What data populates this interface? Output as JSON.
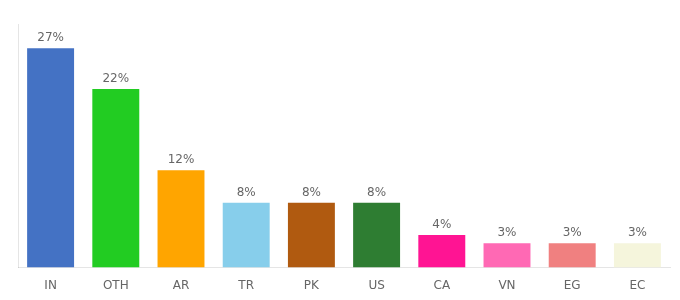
{
  "chart_data": {
    "type": "bar",
    "categories": [
      "IN",
      "OTH",
      "AR",
      "TR",
      "PK",
      "US",
      "CA",
      "VN",
      "EG",
      "EC"
    ],
    "values": [
      27,
      22,
      12,
      8,
      8,
      8,
      4,
      3,
      3,
      3
    ],
    "value_labels": [
      "27%",
      "22%",
      "12%",
      "8%",
      "8%",
      "8%",
      "4%",
      "3%",
      "3%",
      "3%"
    ],
    "colors": [
      "#4472C4",
      "#22CC22",
      "#FFA500",
      "#87CEEB",
      "#B05A10",
      "#2E7D32",
      "#FF1493",
      "#FF69B4",
      "#F08080",
      "#F5F5DC"
    ],
    "ylim": [
      0,
      30
    ],
    "data_labels": true,
    "tick_labels": "x",
    "grid": false
  }
}
